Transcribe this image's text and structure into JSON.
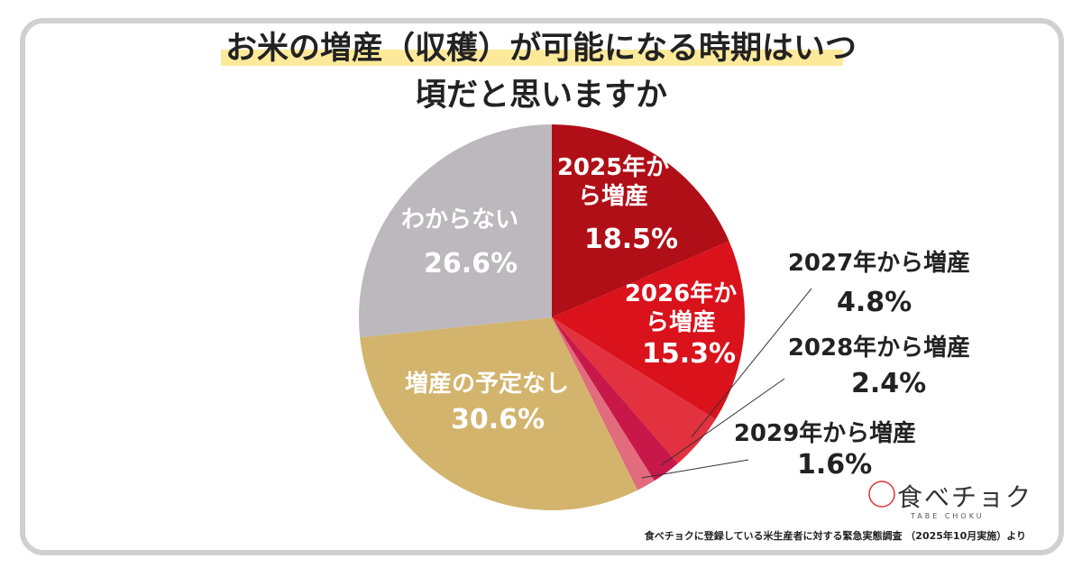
{
  "chart_data": {
    "type": "pie",
    "title": "お米の増産（収穫）が可能になる時期はいつ頃だと思いますか",
    "categories": [
      "2025年から増産",
      "2026年から増産",
      "2027年から増産",
      "2028年から増産",
      "2029年から増産",
      "増産の予定なし",
      "わからない"
    ],
    "values": [
      18.5,
      15.3,
      4.8,
      2.4,
      1.6,
      30.6,
      26.6
    ],
    "value_labels": [
      "18.5%",
      "15.3%",
      "4.8%",
      "2.4%",
      "1.6%",
      "30.6%",
      "26.6%"
    ],
    "colors": [
      "#b00f17",
      "#d9121c",
      "#e2313f",
      "#c8184a",
      "#e26b7c",
      "#d3b46d",
      "#bcb8be"
    ],
    "source": "食べチョクに登録している米生産者に対する緊急実態調査 （2025年10月実施）より",
    "logo": "食べチョク",
    "logo_sub": "TABE CHOKU"
  }
}
